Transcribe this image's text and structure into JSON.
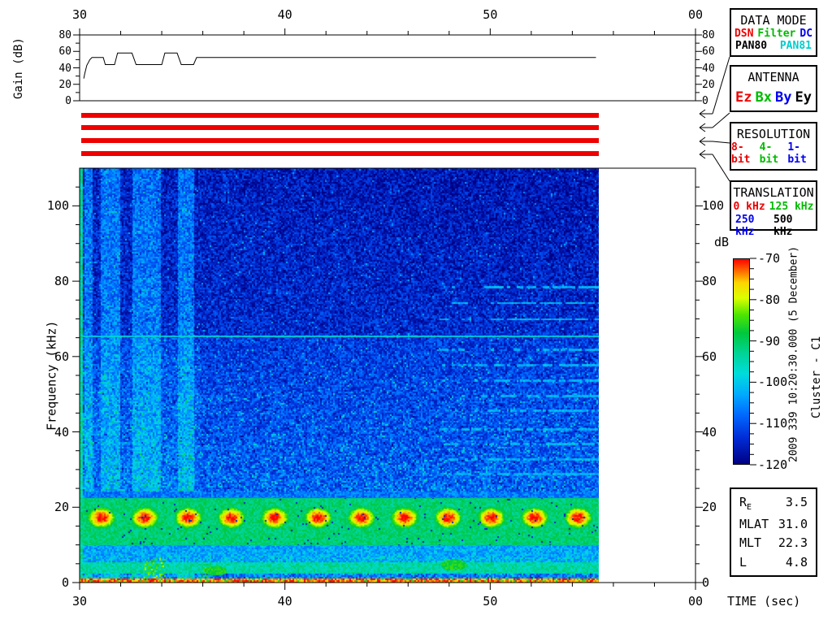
{
  "window": {
    "bg": "#ffffff"
  },
  "side_labels": {
    "gain_ylabel": "Gain (dB)",
    "freq_ylabel": "Frequency (kHz)",
    "colorbar_title": "dB",
    "timestamp": "2009 339 10:20:30.000 (5 December)",
    "spacecraft": "Cluster - C1",
    "time_axis_label": "TIME (sec)"
  },
  "boxes": {
    "data_mode": {
      "title": "DATA MODE",
      "rows": [
        [
          {
            "t": "DSN",
            "c": "#ee0000"
          },
          {
            "t": "Filter",
            "c": "#00bb00"
          },
          {
            "t": "DC",
            "c": "#0000ee"
          }
        ],
        [
          {
            "t": "PAN80",
            "c": "#000000"
          },
          {
            "t": "PAN81",
            "c": "#00cccc"
          }
        ]
      ]
    },
    "antenna": {
      "title": "ANTENNA",
      "rows": [
        [
          {
            "t": "Ez",
            "c": "#ee0000"
          },
          {
            "t": "Bx",
            "c": "#00bb00"
          },
          {
            "t": "By",
            "c": "#0000ee"
          },
          {
            "t": "Ey",
            "c": "#000000"
          }
        ]
      ]
    },
    "resolution": {
      "title": "RESOLUTION",
      "rows": [
        [
          {
            "t": "8-bit",
            "c": "#ee0000"
          },
          {
            "t": "4-bit",
            "c": "#00bb00"
          },
          {
            "t": "1-bit",
            "c": "#0000ee"
          }
        ]
      ]
    },
    "translation": {
      "title": "TRANSLATION",
      "rows": [
        [
          {
            "t": "0 kHz",
            "c": "#ee0000"
          },
          {
            "t": "125 kHz",
            "c": "#00bb00"
          }
        ],
        [
          {
            "t": "250 kHz",
            "c": "#0000ee"
          },
          {
            "t": "500 kHz",
            "c": "#000000"
          }
        ]
      ]
    }
  },
  "status_bars": {
    "bar_color": "#ee0000",
    "rows": [
      {
        "name": "data-mode",
        "selected": "DSN"
      },
      {
        "name": "antenna",
        "selected": "Ez"
      },
      {
        "name": "resolution",
        "selected": "8-bit"
      },
      {
        "name": "translation",
        "selected": "0 kHz"
      }
    ]
  },
  "info_panel": {
    "rows": [
      {
        "label": "R",
        "sub": "E",
        "value": "3.5"
      },
      {
        "label": "MLAT",
        "sub": "",
        "value": "31.0"
      },
      {
        "label": "MLT",
        "sub": "",
        "value": "22.3"
      },
      {
        "label": "L",
        "sub": "",
        "value": "4.8"
      }
    ]
  },
  "chart_data": [
    {
      "type": "line",
      "title": "Receiver gain vs time",
      "ylabel": "Gain (dB)",
      "ylim": [
        0,
        80
      ],
      "y_major_ticks": {
        "labels": [
          "0",
          "20",
          "40",
          "60",
          "80"
        ],
        "values": [
          0,
          20,
          40,
          60,
          80
        ]
      },
      "y_minor_values": [
        10,
        30,
        50,
        70
      ],
      "x_ticks": {
        "labels": [
          "30",
          "40",
          "50",
          "00"
        ],
        "values": [
          30,
          40,
          50,
          60
        ]
      },
      "x_minor_step_sec": 2,
      "xlim_sec": [
        30,
        60
      ],
      "series": [
        {
          "name": "gain_db",
          "points_time_db": [
            [
              30.2,
              27
            ],
            [
              30.25,
              33
            ],
            [
              30.35,
              43
            ],
            [
              30.5,
              50
            ],
            [
              30.6,
              52.5
            ],
            [
              31.15,
              52.5
            ],
            [
              31.25,
              44
            ],
            [
              31.7,
              44
            ],
            [
              31.85,
              58
            ],
            [
              32.55,
              58
            ],
            [
              32.75,
              44
            ],
            [
              34.0,
              44
            ],
            [
              34.15,
              58
            ],
            [
              34.75,
              58
            ],
            [
              34.95,
              44
            ],
            [
              35.55,
              44
            ],
            [
              35.7,
              52.5
            ],
            [
              55.15,
              52.5
            ]
          ]
        }
      ]
    },
    {
      "type": "heatmap",
      "title": "WBD electric field spectrogram",
      "ylabel": "Frequency (kHz)",
      "xlabel": "TIME (sec)",
      "xlim_sec": [
        30,
        60
      ],
      "data_end_sec": 55.25,
      "ylim_khz": [
        0,
        110
      ],
      "y_major_ticks": {
        "labels": [
          "0",
          "20",
          "40",
          "60",
          "80",
          "100"
        ],
        "values": [
          0,
          20,
          40,
          60,
          80,
          100
        ]
      },
      "y_minor_step_khz": 5,
      "x_ticks": {
        "labels": [
          "30",
          "40",
          "50",
          "00"
        ],
        "values": [
          30,
          40,
          50,
          60
        ]
      },
      "x_minor_step_sec": 2,
      "colorbar": {
        "label": "dB",
        "zlim": [
          -120,
          -70
        ],
        "major_ticks": {
          "labels": [
            "-70",
            "-80",
            "-90",
            "-100",
            "-110",
            "-120"
          ],
          "values": [
            -70,
            -80,
            -90,
            -100,
            -110,
            -120
          ]
        },
        "minor_step_db": 2.5,
        "colormap_stops": [
          {
            "t": 0.0,
            "rgb": [
              255,
              0,
              0
            ]
          },
          {
            "t": 0.055,
            "rgb": [
              255,
              102,
              0
            ]
          },
          {
            "t": 0.115,
            "rgb": [
              252,
              213,
              0
            ]
          },
          {
            "t": 0.19,
            "rgb": [
              220,
              255,
              0
            ]
          },
          {
            "t": 0.27,
            "rgb": [
              80,
              230,
              0
            ]
          },
          {
            "t": 0.36,
            "rgb": [
              0,
              200,
              60
            ]
          },
          {
            "t": 0.46,
            "rgb": [
              0,
              212,
              150
            ]
          },
          {
            "t": 0.56,
            "rgb": [
              0,
              220,
              220
            ]
          },
          {
            "t": 0.66,
            "rgb": [
              0,
              170,
              255
            ]
          },
          {
            "t": 0.76,
            "rgb": [
              0,
              105,
              255
            ]
          },
          {
            "t": 0.87,
            "rgb": [
              0,
              45,
              215
            ]
          },
          {
            "t": 1.0,
            "rgb": [
              0,
              0,
              130
            ]
          }
        ]
      },
      "features": {
        "background_db": -114,
        "left_edge_strip_db": -94,
        "vertical_noise_bands_sec": [
          [
            30.2,
            30.6
          ],
          [
            31.0,
            31.95
          ],
          [
            32.55,
            33.95
          ],
          [
            34.75,
            35.55
          ]
        ],
        "narrowband_line": {
          "freq_khz": 65.5,
          "db": -98,
          "extent_sec": [
            30,
            55.25
          ]
        },
        "dashed_lines_khz": [
          78.5,
          74.3,
          70.0,
          61.9,
          57.8,
          53.7,
          49.6,
          45.7,
          40.8,
          36.9,
          32.8,
          28.9
        ],
        "dashed_lines_start_sec": 47.5,
        "dashed_lines_db": -102,
        "hiss_band_khz": [
          10,
          22.5
        ],
        "hiss_band_db": -91,
        "chorus_blobs": {
          "center_khz": 17.3,
          "first_sec": 31.05,
          "period_sec": 2.11,
          "count": 12,
          "peak_db": -70
        },
        "lower_band_khz": [
          2.5,
          10
        ],
        "lower_band_db": -103,
        "bottom_line_khz": [
          0,
          1.1
        ],
        "bottom_line_db": -73
      }
    }
  ]
}
